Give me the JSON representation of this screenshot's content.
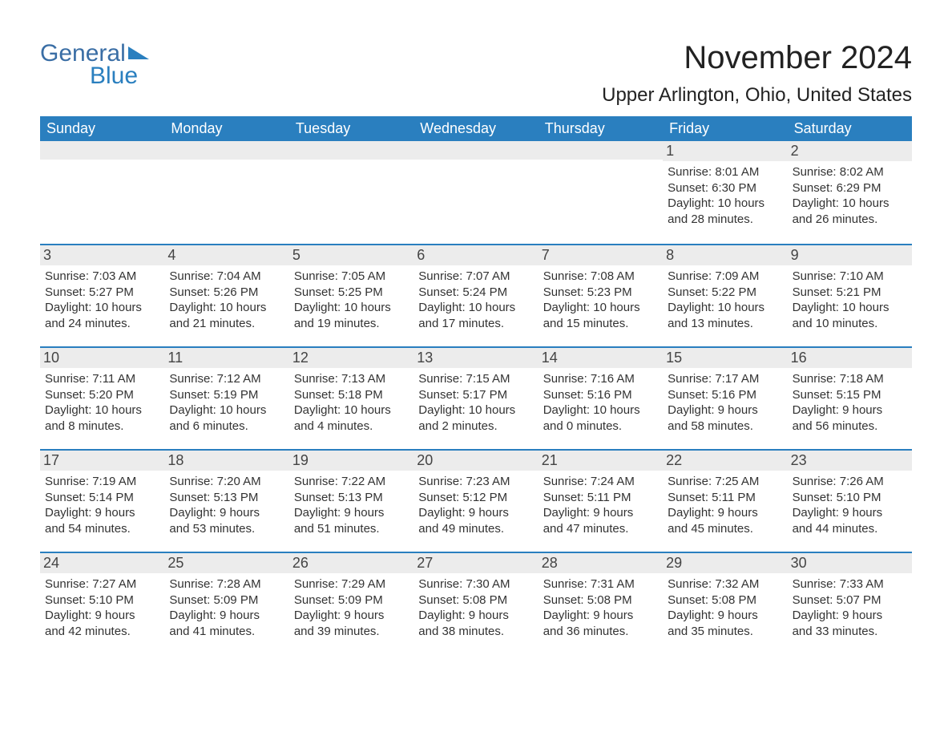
{
  "logo": {
    "text1": "General",
    "text2": "Blue"
  },
  "title": "November 2024",
  "location": "Upper Arlington, Ohio, United States",
  "colors": {
    "header_bg": "#2a7fbf",
    "header_text": "#ffffff",
    "row_divider": "#2a7fbf",
    "daynum_bg": "#ececec",
    "body_text": "#333333",
    "logo_general": "#3a6ea5",
    "logo_blue": "#2a7fbf",
    "background": "#ffffff"
  },
  "weekdays": [
    "Sunday",
    "Monday",
    "Tuesday",
    "Wednesday",
    "Thursday",
    "Friday",
    "Saturday"
  ],
  "weeks": [
    [
      null,
      null,
      null,
      null,
      null,
      {
        "n": "1",
        "sr": "Sunrise: 8:01 AM",
        "ss": "Sunset: 6:30 PM",
        "d1": "Daylight: 10 hours",
        "d2": "and 28 minutes."
      },
      {
        "n": "2",
        "sr": "Sunrise: 8:02 AM",
        "ss": "Sunset: 6:29 PM",
        "d1": "Daylight: 10 hours",
        "d2": "and 26 minutes."
      }
    ],
    [
      {
        "n": "3",
        "sr": "Sunrise: 7:03 AM",
        "ss": "Sunset: 5:27 PM",
        "d1": "Daylight: 10 hours",
        "d2": "and 24 minutes."
      },
      {
        "n": "4",
        "sr": "Sunrise: 7:04 AM",
        "ss": "Sunset: 5:26 PM",
        "d1": "Daylight: 10 hours",
        "d2": "and 21 minutes."
      },
      {
        "n": "5",
        "sr": "Sunrise: 7:05 AM",
        "ss": "Sunset: 5:25 PM",
        "d1": "Daylight: 10 hours",
        "d2": "and 19 minutes."
      },
      {
        "n": "6",
        "sr": "Sunrise: 7:07 AM",
        "ss": "Sunset: 5:24 PM",
        "d1": "Daylight: 10 hours",
        "d2": "and 17 minutes."
      },
      {
        "n": "7",
        "sr": "Sunrise: 7:08 AM",
        "ss": "Sunset: 5:23 PM",
        "d1": "Daylight: 10 hours",
        "d2": "and 15 minutes."
      },
      {
        "n": "8",
        "sr": "Sunrise: 7:09 AM",
        "ss": "Sunset: 5:22 PM",
        "d1": "Daylight: 10 hours",
        "d2": "and 13 minutes."
      },
      {
        "n": "9",
        "sr": "Sunrise: 7:10 AM",
        "ss": "Sunset: 5:21 PM",
        "d1": "Daylight: 10 hours",
        "d2": "and 10 minutes."
      }
    ],
    [
      {
        "n": "10",
        "sr": "Sunrise: 7:11 AM",
        "ss": "Sunset: 5:20 PM",
        "d1": "Daylight: 10 hours",
        "d2": "and 8 minutes."
      },
      {
        "n": "11",
        "sr": "Sunrise: 7:12 AM",
        "ss": "Sunset: 5:19 PM",
        "d1": "Daylight: 10 hours",
        "d2": "and 6 minutes."
      },
      {
        "n": "12",
        "sr": "Sunrise: 7:13 AM",
        "ss": "Sunset: 5:18 PM",
        "d1": "Daylight: 10 hours",
        "d2": "and 4 minutes."
      },
      {
        "n": "13",
        "sr": "Sunrise: 7:15 AM",
        "ss": "Sunset: 5:17 PM",
        "d1": "Daylight: 10 hours",
        "d2": "and 2 minutes."
      },
      {
        "n": "14",
        "sr": "Sunrise: 7:16 AM",
        "ss": "Sunset: 5:16 PM",
        "d1": "Daylight: 10 hours",
        "d2": "and 0 minutes."
      },
      {
        "n": "15",
        "sr": "Sunrise: 7:17 AM",
        "ss": "Sunset: 5:16 PM",
        "d1": "Daylight: 9 hours",
        "d2": "and 58 minutes."
      },
      {
        "n": "16",
        "sr": "Sunrise: 7:18 AM",
        "ss": "Sunset: 5:15 PM",
        "d1": "Daylight: 9 hours",
        "d2": "and 56 minutes."
      }
    ],
    [
      {
        "n": "17",
        "sr": "Sunrise: 7:19 AM",
        "ss": "Sunset: 5:14 PM",
        "d1": "Daylight: 9 hours",
        "d2": "and 54 minutes."
      },
      {
        "n": "18",
        "sr": "Sunrise: 7:20 AM",
        "ss": "Sunset: 5:13 PM",
        "d1": "Daylight: 9 hours",
        "d2": "and 53 minutes."
      },
      {
        "n": "19",
        "sr": "Sunrise: 7:22 AM",
        "ss": "Sunset: 5:13 PM",
        "d1": "Daylight: 9 hours",
        "d2": "and 51 minutes."
      },
      {
        "n": "20",
        "sr": "Sunrise: 7:23 AM",
        "ss": "Sunset: 5:12 PM",
        "d1": "Daylight: 9 hours",
        "d2": "and 49 minutes."
      },
      {
        "n": "21",
        "sr": "Sunrise: 7:24 AM",
        "ss": "Sunset: 5:11 PM",
        "d1": "Daylight: 9 hours",
        "d2": "and 47 minutes."
      },
      {
        "n": "22",
        "sr": "Sunrise: 7:25 AM",
        "ss": "Sunset: 5:11 PM",
        "d1": "Daylight: 9 hours",
        "d2": "and 45 minutes."
      },
      {
        "n": "23",
        "sr": "Sunrise: 7:26 AM",
        "ss": "Sunset: 5:10 PM",
        "d1": "Daylight: 9 hours",
        "d2": "and 44 minutes."
      }
    ],
    [
      {
        "n": "24",
        "sr": "Sunrise: 7:27 AM",
        "ss": "Sunset: 5:10 PM",
        "d1": "Daylight: 9 hours",
        "d2": "and 42 minutes."
      },
      {
        "n": "25",
        "sr": "Sunrise: 7:28 AM",
        "ss": "Sunset: 5:09 PM",
        "d1": "Daylight: 9 hours",
        "d2": "and 41 minutes."
      },
      {
        "n": "26",
        "sr": "Sunrise: 7:29 AM",
        "ss": "Sunset: 5:09 PM",
        "d1": "Daylight: 9 hours",
        "d2": "and 39 minutes."
      },
      {
        "n": "27",
        "sr": "Sunrise: 7:30 AM",
        "ss": "Sunset: 5:08 PM",
        "d1": "Daylight: 9 hours",
        "d2": "and 38 minutes."
      },
      {
        "n": "28",
        "sr": "Sunrise: 7:31 AM",
        "ss": "Sunset: 5:08 PM",
        "d1": "Daylight: 9 hours",
        "d2": "and 36 minutes."
      },
      {
        "n": "29",
        "sr": "Sunrise: 7:32 AM",
        "ss": "Sunset: 5:08 PM",
        "d1": "Daylight: 9 hours",
        "d2": "and 35 minutes."
      },
      {
        "n": "30",
        "sr": "Sunrise: 7:33 AM",
        "ss": "Sunset: 5:07 PM",
        "d1": "Daylight: 9 hours",
        "d2": "and 33 minutes."
      }
    ]
  ]
}
